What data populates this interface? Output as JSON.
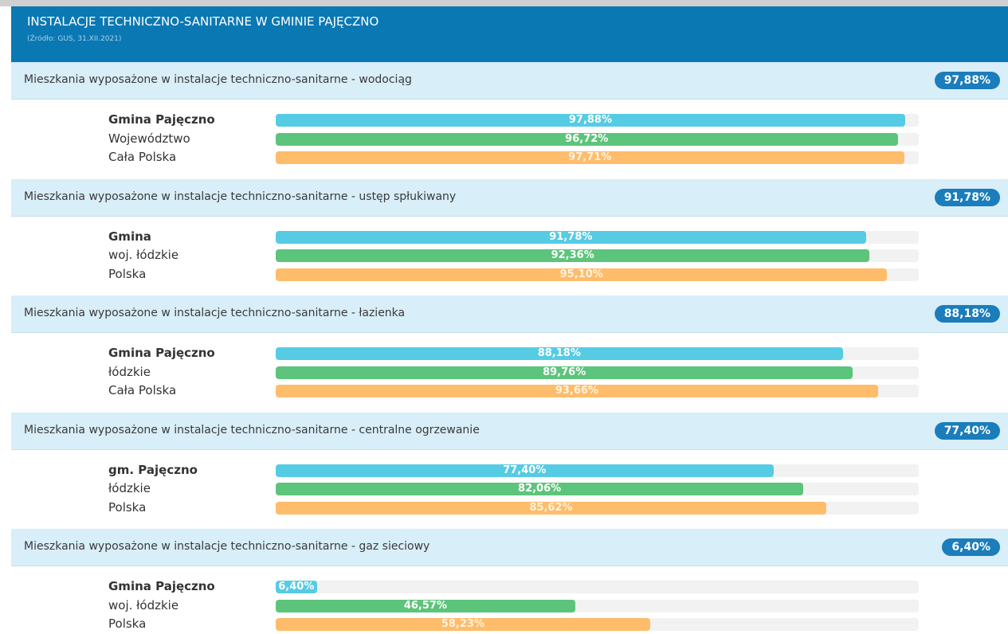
{
  "header": {
    "title": "INSTALACJE TECHNICZNO-SANITARNE W GMINIE PAJĘCZNO",
    "source": "(Źródło: GUS, 31.XII.2021)"
  },
  "xlim": [
    0,
    100
  ],
  "sections": [
    {
      "title": "Mieszkania wyposażone w instalacje techniczno-sanitarne - wodociąg",
      "badge": "97,88%",
      "rows": [
        {
          "name": "Gmina Pajęczno",
          "value": 97.88,
          "label": "97,88%"
        },
        {
          "name": "Województwo",
          "value": 96.72,
          "label": "96,72%"
        },
        {
          "name": "Cała Polska",
          "value": 97.71,
          "label": "97,71%"
        }
      ]
    },
    {
      "title": "Mieszkania wyposażone w instalacje techniczno-sanitarne - ustęp spłukiwany",
      "badge": "91,78%",
      "rows": [
        {
          "name": "Gmina",
          "value": 91.78,
          "label": "91,78%"
        },
        {
          "name": "woj. łódzkie",
          "value": 92.36,
          "label": "92,36%"
        },
        {
          "name": "Polska",
          "value": 95.1,
          "label": "95,10%"
        }
      ]
    },
    {
      "title": "Mieszkania wyposażone w instalacje techniczno-sanitarne - łazienka",
      "badge": "88,18%",
      "rows": [
        {
          "name": "Gmina Pajęczno",
          "value": 88.18,
          "label": "88,18%"
        },
        {
          "name": "łódzkie",
          "value": 89.76,
          "label": "89,76%"
        },
        {
          "name": "Cała Polska",
          "value": 93.66,
          "label": "93,66%"
        }
      ]
    },
    {
      "title": "Mieszkania wyposażone w instalacje techniczno-sanitarne - centralne ogrzewanie",
      "badge": "77,40%",
      "rows": [
        {
          "name": "gm. Pajęczno",
          "value": 77.4,
          "label": "77,40%"
        },
        {
          "name": "łódzkie",
          "value": 82.06,
          "label": "82,06%"
        },
        {
          "name": "Polska",
          "value": 85.62,
          "label": "85,62%"
        }
      ]
    },
    {
      "title": "Mieszkania wyposażone w instalacje techniczno-sanitarne - gaz sieciowy",
      "badge": "6,40%",
      "rows": [
        {
          "name": "Gmina Pajęczno",
          "value": 6.4,
          "label": "6,40%"
        },
        {
          "name": "woj. łódzkie",
          "value": 46.57,
          "label": "46,57%"
        },
        {
          "name": "Polska",
          "value": 58.23,
          "label": "58,23%"
        }
      ]
    }
  ]
}
